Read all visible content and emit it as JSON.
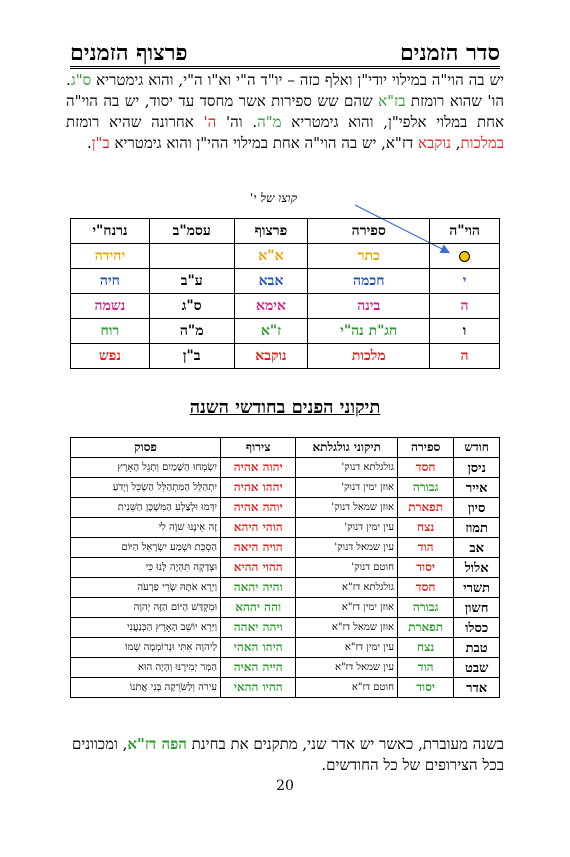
{
  "header": {
    "right": "סדר הזמנים",
    "left": "פרצוף הזמנים"
  },
  "intro": {
    "p1": "יש בה הוי\"ה במילוי יודי\"ן ואלף כזה – יו\"ד ה\"י וא\"ו ה\"י, והוא גימטריא ",
    "p1_sag": "ס\"ג",
    "p2": ". הו' שהוא רומזת ",
    "p2_za": "בז\"א",
    "p3": " שהם שש ספירות אשר מחסד עד יסוד, יש בה הוי\"ה אחת במלוי אלפי\"ן, והוא גימטריא ",
    "p3_mah": "מ\"ה",
    "p4": ". וה' ",
    "p4_h": "ה'",
    "p5": " אחרונה שהיא רומזת ",
    "p5_mal": "במלכות",
    "p6": ", ",
    "p6_nuk": "נוקבא",
    "p7": " דז\"א, יש בה הוי\"ה אחת במילוי ההי\"ן והוא גימטריא ",
    "p7_ban": "ב\"ן",
    "p8": "."
  },
  "arrow_note": "קוצו של י'",
  "table1": {
    "headers": [
      "הוי\"ה",
      "ספירה",
      "פרצוף",
      "עסמ\"ב",
      "נרנח\"י"
    ],
    "rows": [
      {
        "c1": "",
        "c2": "כתר",
        "c3": "א\"א",
        "c4": "",
        "c5": "יחידה",
        "col": "o"
      },
      {
        "c1": "י",
        "c2": "חכמה",
        "c3": "אבא",
        "c4": "ע\"ב",
        "c5": "חיה",
        "col": "b"
      },
      {
        "c1": "ה",
        "c2": "בינה",
        "c3": "אימא",
        "c4": "ס\"ג",
        "c5": "נשמה",
        "col": "m"
      },
      {
        "c1": "ו",
        "c2": "חג\"ת נה\"י",
        "c3": "ז\"א",
        "c4": "מ\"ה",
        "c5": "רוח",
        "col": "g"
      },
      {
        "c1": "ה",
        "c2": "מלכות",
        "c3": "נוקבא",
        "c4": "ב\"ן",
        "c5": "נפש",
        "col": "r"
      }
    ]
  },
  "section_title": "תיקוני הפנים בחודשי השנה",
  "table2": {
    "headers": [
      "חודש",
      "ספירה",
      "תיקוני גולגלתא",
      "צירוף",
      "פסוק"
    ],
    "rows": [
      {
        "month": "ניסן",
        "sefira": "חסד",
        "scol": "r",
        "tikun": "גולגלתא דנוק'",
        "tzeruf": "יהוה אהיה",
        "tcol": "r",
        "pasuk": "יִשְׂמְחוּ הַשָּׁמַיִם וְתָגֵל הָאָרֶץ"
      },
      {
        "month": "אייר",
        "sefira": "גבורה",
        "scol": "g",
        "tikun": "אוזן ימין דנוק'",
        "tzeruf": "יההו אהיה",
        "tcol": "r",
        "pasuk": "יִתְהַלֵּל הַמִּתְהַלֵּל הַשְׂכֵּל וְיָדֹעַ"
      },
      {
        "month": "סיון",
        "sefira": "תפארת",
        "scol": "r",
        "tikun": "אוזן שמאל דנוק'",
        "tzeruf": "יוהה אהיה",
        "tcol": "r",
        "pasuk": "יִדְּמוּ וּלְצַלְעִ הַמִּשְׁכָּן הַשֵּׁנִית"
      },
      {
        "month": "תמוז",
        "sefira": "נצח",
        "scol": "r",
        "tikun": "עין ימין דנוק'",
        "tzeruf": "הוהי היהא",
        "tcol": "r",
        "pasuk": "זֶה אֵינֶנּוּ שׁוֶֹה לִי"
      },
      {
        "month": "אב",
        "sefira": "הוד",
        "scol": "r",
        "tikun": "עין שמאל דנוק'",
        "tzeruf": "הויה היאה",
        "tcol": "r",
        "pasuk": "הַסְכֵּת וּשְׁמַע יִשְׂרָאֵל הַיּוֹם"
      },
      {
        "month": "אלול",
        "sefira": "יסוד",
        "scol": "r",
        "tikun": "חוטם דנוק'",
        "tzeruf": "ההוי ההיא",
        "tcol": "r",
        "pasuk": "וּצְדָקָה תִּהְיֶה לָּנוּ כִּי"
      },
      {
        "month": "תשרי",
        "sefira": "חסד",
        "scol": "r",
        "tikun": "גולגלתא דז\"א",
        "tzeruf": "והיה יהאה",
        "tcol": "g",
        "pasuk": "וַיְרָא אֹתָהּ שָׂרֵי פַרְעֹה"
      },
      {
        "month": "חשון",
        "sefira": "גבורה",
        "scol": "g",
        "tikun": "אוזן ימין דז\"א",
        "tzeruf": "והה יההא",
        "tcol": "g",
        "pasuk": "וּמִקְדַּשׁ הַיּוֹם הַזֶּה יְהוָה"
      },
      {
        "month": "כסלו",
        "sefira": "תפארת",
        "scol": "g",
        "tikun": "אוזן שמאל דז\"א",
        "tzeruf": "ויהה יאהה",
        "tcol": "g",
        "pasuk": "וַיַּרְא יוֹשֵׁב הָאָרֶץ הַכְּנַעֲנִי"
      },
      {
        "month": "טבת",
        "sefira": "נצח",
        "scol": "g",
        "tikun": "עין ימין דז\"א",
        "tzeruf": "היהו האהי",
        "tcol": "g",
        "pasuk": "לַיהוָה אִתִּי וּנְרוֹמְמָה שְׁמוֹ"
      },
      {
        "month": "שבט",
        "sefira": "הוד",
        "scol": "g",
        "tikun": "עין שמאל דז\"א",
        "tzeruf": "הייה האיה",
        "tcol": "g",
        "pasuk": "הַמְּר יְמִירֶנּוּ וְהָיָה הוּא"
      },
      {
        "month": "אדר",
        "sefira": "יסוד",
        "scol": "g",
        "tikun": "חוטם דז\"א",
        "tzeruf": "ההיו ההאי",
        "tcol": "g",
        "pasuk": "עִירֹה וְלַשֹּׂרֵקָה בְּנִי אֲתֹנוֹ"
      }
    ]
  },
  "footer": {
    "f1": "בשנה מעוברת, כאשר יש אדר שני, מתקנים את בחינת ",
    "f1_bold": "הפה דז\"א",
    "f2": ", ומכוונים בכל הצירופים של כל החודשים."
  },
  "page_number": "20"
}
